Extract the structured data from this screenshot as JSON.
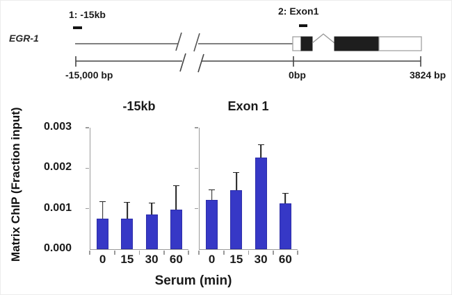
{
  "gene_diagram": {
    "gene_name": "EGR-1",
    "site1_label": "1: -15kb",
    "site2_label": "2: Exon1",
    "scale_start_label": "-15,000 bp",
    "scale_zero_label": "0bp",
    "scale_end_label": "3824 bp"
  },
  "chart_data": {
    "type": "bar",
    "title": "",
    "ylabel": "Matrix ChIP (Fraction input)",
    "xlabel": "Serum (min)",
    "categories": [
      "0",
      "15",
      "30",
      "60"
    ],
    "ylim": [
      0,
      0.003
    ],
    "ytick_labels": [
      "0.000",
      "0.001",
      "0.002",
      "0.003"
    ],
    "grid": false,
    "legend": "none",
    "bar_color": "#3638c6",
    "bar_edge_color": "#2c2da8",
    "error_bar_color": "#222222",
    "panels": [
      {
        "title": "-15kb",
        "values": [
          0.00075,
          0.00075,
          0.00086,
          0.00098
        ],
        "errors": [
          0.00042,
          0.0004,
          0.00028,
          0.00058
        ]
      },
      {
        "title": "Exon 1",
        "values": [
          0.00122,
          0.00146,
          0.00226,
          0.00114
        ],
        "errors": [
          0.00024,
          0.00042,
          0.00032,
          0.00024
        ]
      }
    ]
  }
}
